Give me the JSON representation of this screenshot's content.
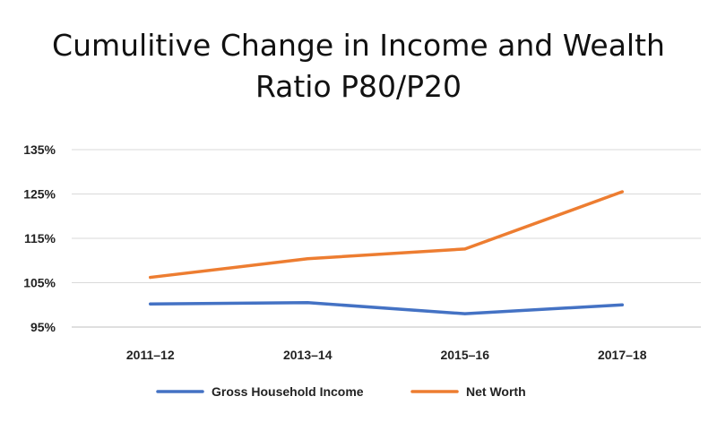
{
  "chart_data": {
    "type": "line",
    "title_lines": [
      "Cumulitive Change in Income and Wealth",
      "Ratio P80/P20"
    ],
    "categories": [
      "2011–12",
      "2013–14",
      "2015–16",
      "2017–18"
    ],
    "y_ticks": [
      "95%",
      "105%",
      "115%",
      "125%",
      "135%"
    ],
    "ylim": [
      95,
      135
    ],
    "y_unit": "%",
    "grid": true,
    "legend_position": "bottom",
    "series": [
      {
        "name": "Gross Household Income",
        "values": [
          100.2,
          100.5,
          98.0,
          100.0
        ],
        "color": "#4472C4"
      },
      {
        "name": "Net Worth",
        "values": [
          106.2,
          110.4,
          112.6,
          125.5
        ],
        "color": "#ED7D31"
      }
    ]
  }
}
